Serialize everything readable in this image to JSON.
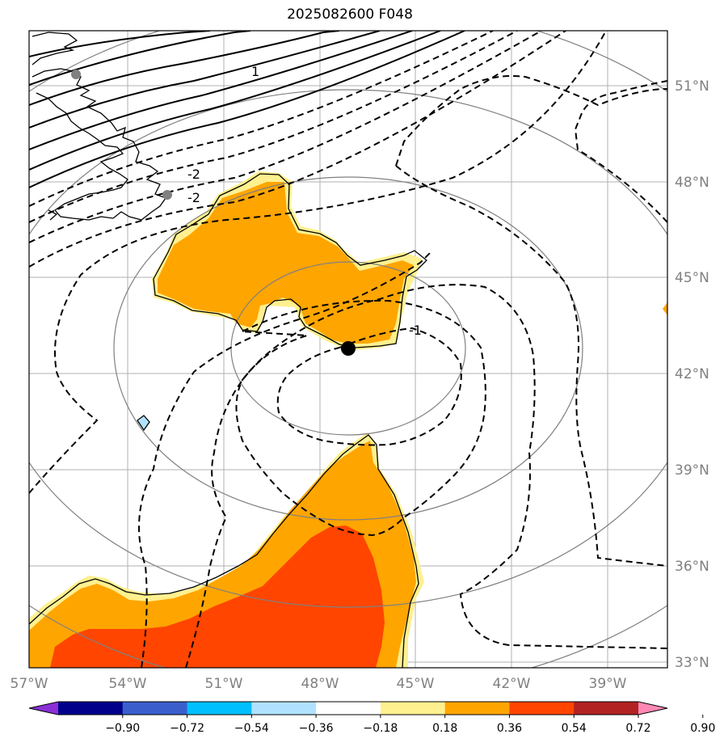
{
  "title": "2025082600 F048",
  "map": {
    "lon_ticks": [
      "57°W",
      "54°W",
      "51°W",
      "48°W",
      "45°W",
      "42°W",
      "39°W"
    ],
    "lat_ticks": [
      "51°N",
      "48°N",
      "45°N",
      "42°N",
      "39°N",
      "36°N",
      "33°N"
    ],
    "contour_labels": [
      "1",
      "-2",
      "-2",
      "-1"
    ],
    "center_marker": {
      "lon": -47.0,
      "lat": 42.8
    },
    "stations": [
      {
        "lon": -55.5,
        "lat": 51.3
      },
      {
        "lon": -52.7,
        "lat": 47.6
      }
    ]
  },
  "colorbar": {
    "labels": [
      "−0.90",
      "−0.72",
      "−0.54",
      "−0.36",
      "−0.18",
      "0.18",
      "0.36",
      "0.54",
      "0.72",
      "0.90"
    ],
    "colors": [
      "#8b2fd6",
      "#00008b",
      "#3a5fcd",
      "#00bfff",
      "#b0e2ff",
      "#ffffff",
      "#fff08f",
      "#ffa500",
      "#ff4500",
      "#b22222",
      "#ff88b4"
    ]
  }
}
